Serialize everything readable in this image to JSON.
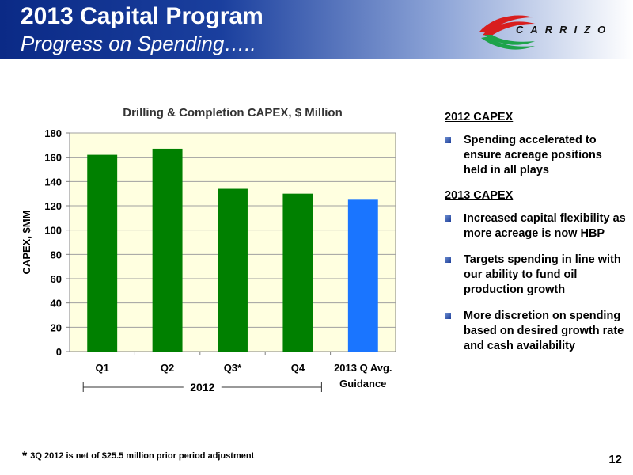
{
  "header": {
    "title": "2013 Capital Program",
    "subtitle": "Progress on Spending…..",
    "logo_text": "CARRIZO"
  },
  "chart_data": {
    "type": "bar",
    "title": "Drilling & Completion CAPEX, $ Million",
    "ylabel": "CAPEX, $MM",
    "xlabel": "",
    "categories": [
      "Q1",
      "Q2",
      "Q3*",
      "Q4",
      "2013 Q Avg. Guidance"
    ],
    "category_lines": [
      [
        "Q1"
      ],
      [
        "Q2"
      ],
      [
        "Q3*"
      ],
      [
        "Q4"
      ],
      [
        "2013 Q Avg.",
        "Guidance"
      ]
    ],
    "values": [
      162,
      167,
      134,
      130,
      125
    ],
    "bar_colors": [
      "#008000",
      "#008000",
      "#008000",
      "#008000",
      "#1a75ff"
    ],
    "ylim": [
      0,
      180
    ],
    "yticks": [
      0,
      20,
      40,
      60,
      80,
      100,
      120,
      140,
      160,
      180
    ],
    "grid": true,
    "group_label": "2012",
    "colors": {
      "plot_bg": "#ffffe0",
      "grid": "#a0a0a0"
    }
  },
  "notes": {
    "sections": [
      {
        "heading": "2012 CAPEX",
        "bullets": [
          "Spending accelerated to ensure acreage positions held in all plays"
        ]
      },
      {
        "heading": "2013 CAPEX",
        "bullets": [
          "Increased capital flexibility as more acreage is now HBP",
          "Targets spending in line with our ability to fund oil production growth",
          "More discretion on spending based on desired growth rate and cash availability"
        ]
      }
    ]
  },
  "footnote": {
    "marker": "*",
    "text": "3Q 2012 is net of $25.5 million prior period adjustment"
  },
  "page_number": "12"
}
